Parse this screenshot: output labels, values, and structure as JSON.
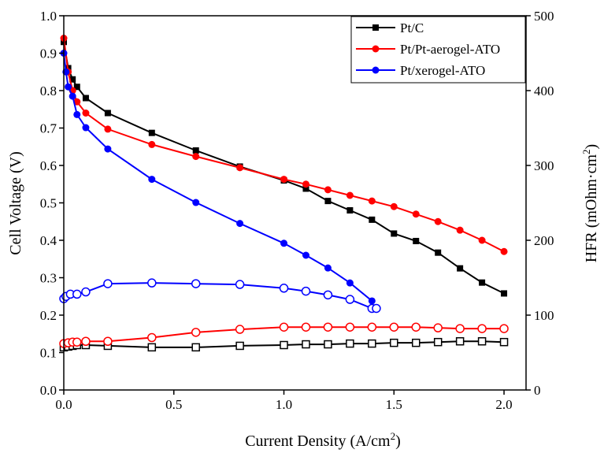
{
  "chart_data": {
    "type": "line",
    "xlabel": "Current Density (A/cm",
    "xlabel_sup": "2",
    "xlabel_end": ")",
    "ylabel": "Cell Voltage (V)",
    "ylabel_right": "HFR (mOhm·cm",
    "ylabel_right_sup": "2",
    "ylabel_right_end": ")",
    "xlim": [
      0,
      2.1
    ],
    "ylim": [
      0,
      1.0
    ],
    "ylim_right": [
      0,
      500
    ],
    "x_ticks": [
      "0.0",
      "0.5",
      "1.0",
      "1.5",
      "2.0"
    ],
    "y_ticks": [
      "0.0",
      "0.1",
      "0.2",
      "0.3",
      "0.4",
      "0.5",
      "0.6",
      "0.7",
      "0.8",
      "0.9",
      "1.0"
    ],
    "y_right_ticks": [
      "0",
      "100",
      "200",
      "300",
      "400",
      "500"
    ],
    "legend_position": "top-right",
    "series": [
      {
        "name": "Pt/C",
        "color": "#000000",
        "marker": "square",
        "axis": "left",
        "x": [
          0.0,
          0.02,
          0.04,
          0.06,
          0.1,
          0.2,
          0.4,
          0.6,
          0.8,
          1.0,
          1.1,
          1.2,
          1.3,
          1.4,
          1.5,
          1.6,
          1.7,
          1.8,
          1.9,
          2.0
        ],
        "y": [
          0.93,
          0.86,
          0.83,
          0.81,
          0.78,
          0.74,
          0.687,
          0.64,
          0.597,
          0.56,
          0.538,
          0.505,
          0.48,
          0.455,
          0.418,
          0.398,
          0.367,
          0.325,
          0.287,
          0.258
        ]
      },
      {
        "name": "Pt/Pt-aerogel-ATO",
        "color": "#ff0000",
        "marker": "circle",
        "axis": "left",
        "x": [
          0.0,
          0.02,
          0.04,
          0.06,
          0.1,
          0.2,
          0.4,
          0.6,
          0.8,
          1.0,
          1.1,
          1.2,
          1.3,
          1.4,
          1.5,
          1.6,
          1.7,
          1.8,
          1.9,
          2.0
        ],
        "y": [
          0.94,
          0.85,
          0.8,
          0.77,
          0.74,
          0.697,
          0.656,
          0.624,
          0.594,
          0.563,
          0.55,
          0.535,
          0.52,
          0.505,
          0.49,
          0.47,
          0.45,
          0.427,
          0.4,
          0.37
        ]
      },
      {
        "name": "Pt/xerogel-ATO",
        "color": "#0000ff",
        "marker": "circle",
        "axis": "left",
        "x": [
          0.0,
          0.01,
          0.02,
          0.04,
          0.06,
          0.1,
          0.2,
          0.4,
          0.6,
          0.8,
          1.0,
          1.1,
          1.2,
          1.3,
          1.4
        ],
        "y": [
          0.9,
          0.85,
          0.81,
          0.785,
          0.736,
          0.701,
          0.644,
          0.563,
          0.501,
          0.445,
          0.392,
          0.36,
          0.326,
          0.286,
          0.238
        ]
      },
      {
        "name": "",
        "color": "#000000",
        "marker": "square-open",
        "axis": "right",
        "x": [
          0.0,
          0.02,
          0.04,
          0.06,
          0.1,
          0.2,
          0.4,
          0.6,
          0.8,
          1.0,
          1.1,
          1.2,
          1.3,
          1.4,
          1.5,
          1.6,
          1.7,
          1.8,
          1.9,
          2.0
        ],
        "y": [
          57,
          58,
          59,
          60,
          60,
          59,
          57,
          57,
          59,
          60,
          61,
          61,
          62,
          62,
          63,
          63,
          64,
          65,
          65,
          64
        ]
      },
      {
        "name": "",
        "color": "#ff0000",
        "marker": "circle-open",
        "axis": "right",
        "x": [
          0.0,
          0.02,
          0.04,
          0.06,
          0.1,
          0.2,
          0.4,
          0.6,
          0.8,
          1.0,
          1.1,
          1.2,
          1.3,
          1.4,
          1.5,
          1.6,
          1.7,
          1.8,
          1.9,
          2.0
        ],
        "y": [
          62,
          63,
          64,
          64,
          65,
          65,
          70,
          77,
          81,
          84,
          84,
          84,
          84,
          84,
          84,
          84,
          83,
          82,
          82,
          82
        ]
      },
      {
        "name": "",
        "color": "#0000ff",
        "marker": "circle-open",
        "axis": "right",
        "x": [
          0.0,
          0.01,
          0.03,
          0.06,
          0.1,
          0.2,
          0.4,
          0.6,
          0.8,
          1.0,
          1.1,
          1.2,
          1.3,
          1.4,
          1.42
        ],
        "y": [
          122,
          125,
          128,
          128,
          131,
          142,
          143,
          142,
          141,
          136,
          132,
          127,
          121,
          109,
          109
        ]
      }
    ]
  }
}
